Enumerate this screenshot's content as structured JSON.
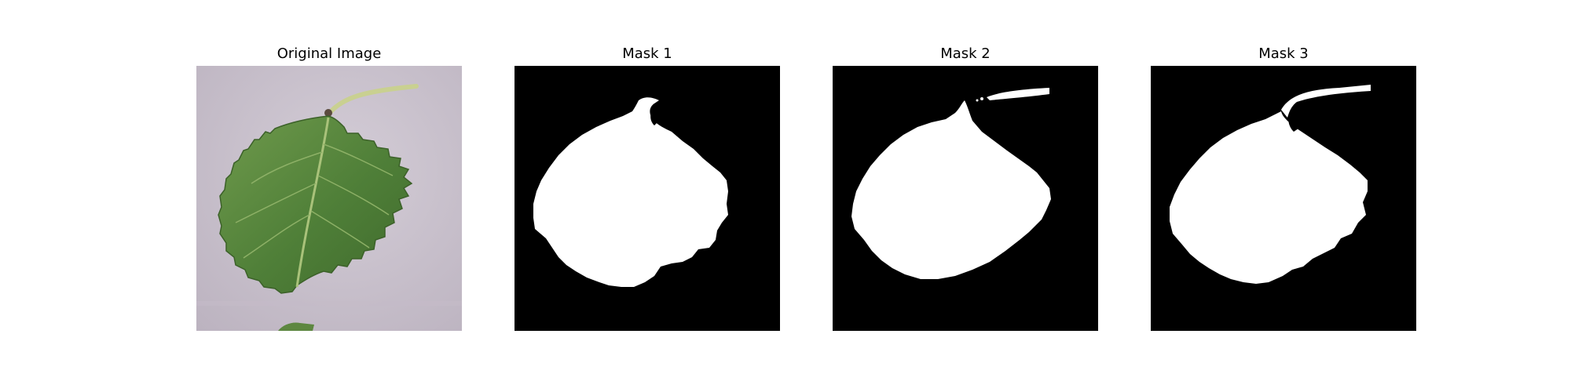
{
  "figure": {
    "panels": [
      {
        "title": "Original Image"
      },
      {
        "title": "Mask 1"
      },
      {
        "title": "Mask 2"
      },
      {
        "title": "Mask 3"
      }
    ]
  },
  "colors": {
    "mask_background": "#000000",
    "mask_foreground": "#ffffff",
    "photo_background": "#cbc3ce",
    "leaf_dark": "#4a7a34",
    "leaf_light": "#7fa85a",
    "stem": "#c8d08e"
  }
}
